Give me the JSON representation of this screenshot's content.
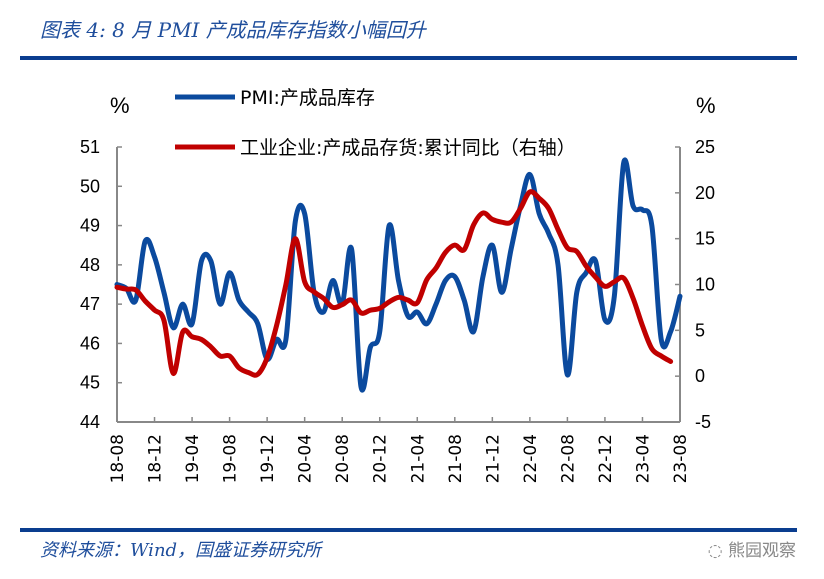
{
  "header": {
    "title": "图表 4:  8 月 PMI 产成品库存指数小幅回升"
  },
  "footer": {
    "source": "资料来源：Wind，国盛证券研究所",
    "watermark": "熊园观察"
  },
  "colors": {
    "rule": "#0a3d8f",
    "pmi": "#0b4a9e",
    "inventory": "#c00000"
  },
  "chart_data": {
    "type": "line",
    "left_unit": "%",
    "right_unit": "%",
    "x_tick_labels": [
      "18-08",
      "18-12",
      "19-04",
      "19-08",
      "19-12",
      "20-04",
      "20-08",
      "20-12",
      "21-04",
      "21-08",
      "21-12",
      "22-04",
      "22-08",
      "22-12",
      "23-04",
      "23-08"
    ],
    "x_range": [
      "18-08",
      "23-08"
    ],
    "y_left": {
      "range": [
        44,
        51
      ],
      "ticks": [
        44,
        45,
        46,
        47,
        48,
        49,
        50,
        51
      ]
    },
    "y_right": {
      "range": [
        -5,
        25
      ],
      "ticks": [
        -5,
        0,
        5,
        10,
        15,
        20,
        25
      ]
    },
    "legend_position": "top",
    "grid": false,
    "series": [
      {
        "name": "PMI:产成品库存",
        "axis": "left",
        "start": "18-08",
        "values": [
          47.5,
          47.4,
          47.1,
          48.6,
          48.2,
          47.3,
          46.4,
          47.0,
          46.5,
          48.1,
          48.1,
          47.0,
          47.8,
          47.1,
          46.8,
          46.5,
          45.6,
          46.1,
          46.1,
          49.1,
          49.3,
          47.3,
          46.8,
          47.6,
          47.0,
          48.4,
          44.9,
          45.9,
          46.3,
          49.0,
          47.6,
          46.7,
          46.8,
          46.5,
          47.0,
          47.6,
          47.7,
          47.1,
          46.3,
          47.7,
          48.5,
          47.3,
          48.4,
          49.5,
          50.3,
          49.3,
          48.8,
          48.0,
          45.2,
          47.3,
          47.8,
          48.1,
          46.6,
          47.2,
          50.6,
          49.5,
          49.4,
          49.0,
          46.1,
          46.3,
          47.2
        ]
      },
      {
        "name": "工业企业:产成品存货:累计同比（右轴）",
        "axis": "right",
        "start": "18-08",
        "values": [
          9.7,
          9.5,
          9.4,
          8.2,
          7.2,
          6.1,
          0.3,
          4.8,
          4.3,
          4.0,
          3.2,
          2.2,
          2.2,
          0.9,
          0.4,
          0.2,
          2.0,
          5.5,
          10.0,
          15.0,
          10.3,
          9.2,
          8.5,
          7.5,
          7.8,
          8.3,
          6.9,
          7.2,
          7.4,
          8.1,
          8.6,
          8.3,
          8.0,
          10.5,
          11.8,
          13.5,
          14.3,
          13.8,
          16.5,
          17.8,
          17.1,
          16.8,
          16.8,
          18.3,
          20.1,
          19.4,
          18.3,
          16.0,
          14.0,
          13.6,
          12.0,
          10.8,
          9.8,
          10.3,
          10.7,
          8.5,
          5.5,
          3.0,
          2.2,
          1.6
        ]
      }
    ]
  }
}
